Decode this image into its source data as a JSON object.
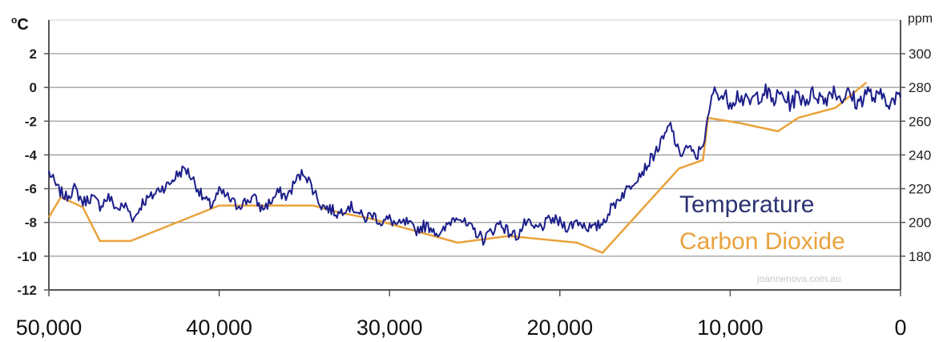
{
  "chart_data": {
    "type": "line",
    "left_axis": {
      "unit": "oC",
      "ticks": [
        "2",
        "0",
        "-2",
        "-4",
        "-6",
        "-8",
        "-10",
        "-12"
      ],
      "range": [
        -12,
        2
      ]
    },
    "right_axis": {
      "unit": "ppm",
      "ticks": [
        "300",
        "280",
        "260",
        "240",
        "220",
        "200",
        "180"
      ],
      "range": [
        160,
        300
      ]
    },
    "x_axis": {
      "ticks": [
        "50,000",
        "40,000",
        "30,000",
        "20,000",
        "10,000",
        "0"
      ],
      "range": [
        50000,
        0
      ]
    },
    "watermark": "joannenova.com.au",
    "series": [
      {
        "name": "Temperature",
        "axis": "left",
        "color": "#1c1f8a",
        "x": [
          50000,
          49500,
          49000,
          48500,
          48000,
          47500,
          47000,
          46500,
          46000,
          45500,
          45000,
          44500,
          44000,
          43500,
          43000,
          42500,
          42000,
          41500,
          41000,
          40500,
          40000,
          39500,
          39000,
          38500,
          38000,
          37500,
          37000,
          36500,
          36000,
          35500,
          35000,
          34500,
          34000,
          33500,
          33000,
          32500,
          32000,
          31500,
          31000,
          30500,
          30000,
          29500,
          29000,
          28500,
          28000,
          27500,
          27000,
          26500,
          26000,
          25500,
          25000,
          24500,
          24000,
          23500,
          23000,
          22500,
          22000,
          21500,
          21000,
          20500,
          20000,
          19500,
          19000,
          18500,
          18000,
          17500,
          17000,
          16500,
          16000,
          15500,
          15000,
          14500,
          14000,
          13500,
          13000,
          12500,
          12000,
          11500,
          11000,
          10500,
          10000,
          9500,
          9000,
          8500,
          8000,
          7500,
          7000,
          6500,
          6000,
          5500,
          5000,
          4500,
          4000,
          3500,
          3000,
          2500,
          2000,
          1500,
          1000,
          500,
          0
        ],
        "values": [
          -5.0,
          -6.0,
          -6.5,
          -6.0,
          -6.8,
          -6.5,
          -7.0,
          -6.5,
          -7.2,
          -7.0,
          -7.8,
          -6.8,
          -6.5,
          -6.0,
          -5.8,
          -5.2,
          -4.8,
          -5.5,
          -6.5,
          -7.0,
          -6.2,
          -6.5,
          -7.0,
          -6.8,
          -6.5,
          -7.2,
          -6.8,
          -6.2,
          -6.5,
          -5.5,
          -5.0,
          -6.0,
          -7.0,
          -7.2,
          -7.5,
          -7.0,
          -7.2,
          -7.8,
          -7.5,
          -8.0,
          -7.8,
          -8.2,
          -8.0,
          -8.5,
          -8.2,
          -8.3,
          -8.8,
          -8.0,
          -7.5,
          -8.2,
          -8.5,
          -9.0,
          -8.5,
          -8.0,
          -8.6,
          -8.8,
          -8.0,
          -8.4,
          -8.2,
          -7.8,
          -8.0,
          -8.3,
          -7.9,
          -8.2,
          -8.4,
          -8.0,
          -7.2,
          -6.5,
          -6.0,
          -5.3,
          -4.8,
          -4.0,
          -3.2,
          -2.2,
          -4.0,
          -3.5,
          -4.2,
          -3.0,
          -0.2,
          -0.5,
          -0.8,
          -0.4,
          -1.0,
          -0.6,
          -0.2,
          -0.8,
          -0.4,
          -0.9,
          -0.5,
          -0.7,
          -0.3,
          -0.8,
          -0.1,
          -0.6,
          -0.4,
          -1.0,
          -0.2,
          -0.7,
          -0.5,
          -0.9,
          -0.6
        ]
      },
      {
        "name": "Carbon Dioxide",
        "axis": "right",
        "color": "#e9a23b",
        "x": [
          50000,
          49300,
          48000,
          47000,
          45200,
          40000,
          34500,
          33000,
          31000,
          26000,
          23000,
          19000,
          17500,
          13000,
          11600,
          11300,
          9500,
          7200,
          6000,
          3800,
          2000
        ],
        "values": [
          203,
          215,
          209,
          189,
          189,
          210,
          210,
          206,
          202,
          188,
          192,
          188,
          182,
          232,
          237,
          262,
          259,
          254,
          262,
          268,
          283
        ]
      }
    ]
  }
}
